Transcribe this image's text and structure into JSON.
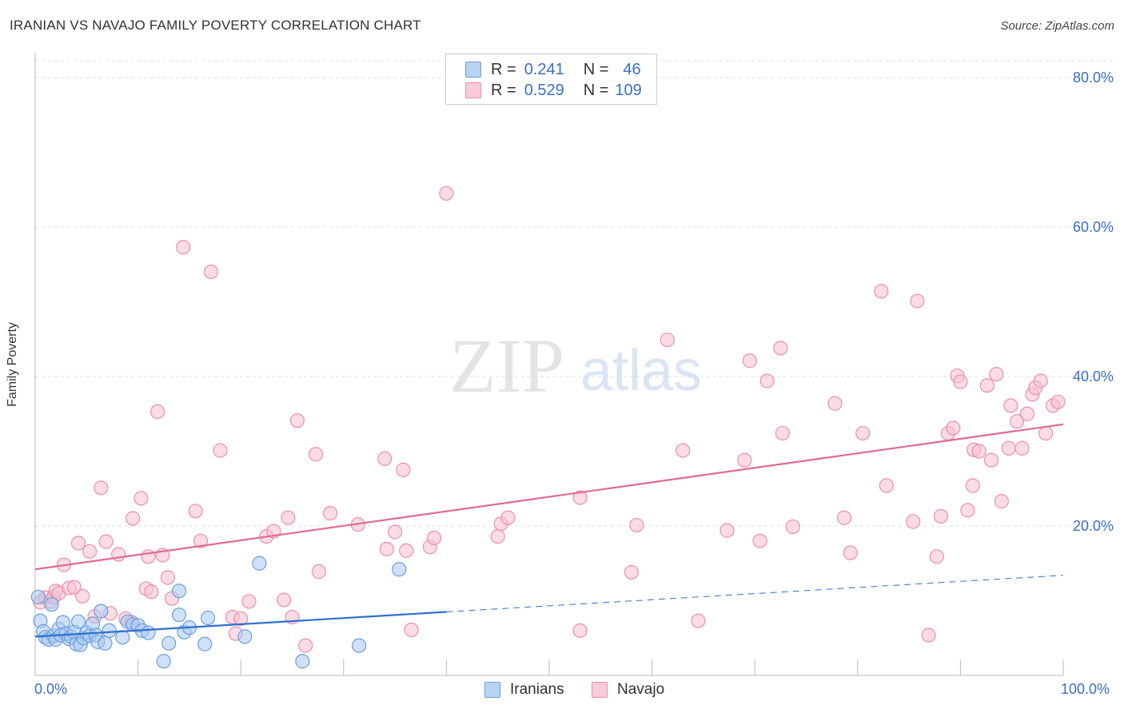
{
  "header": {
    "title": "IRANIAN VS NAVAJO FAMILY POVERTY CORRELATION CHART",
    "source": "Source: ZipAtlas.com"
  },
  "watermark": {
    "zip": "ZIP",
    "atlas": "atlas"
  },
  "legend_top": [
    {
      "r_label": "R =",
      "r_value": "0.241",
      "n_label": "N =",
      "n_value": "46"
    },
    {
      "r_label": "R =",
      "r_value": "0.529",
      "n_label": "N =",
      "n_value": "109"
    }
  ],
  "legend_bottom": [
    "Iranians",
    "Navajo"
  ],
  "x_tick_labels": {
    "left": "0.0%",
    "right": "100.0%"
  },
  "colors": {
    "iranians_fill": "#a9c8f0",
    "iranians_stroke": "#6a9fde",
    "iranians_line": "#2f6fcf",
    "navajo_fill": "#f7bfd0",
    "navajo_stroke": "#eb8fac",
    "navajo_line": "#e06a95",
    "tick_label": "#3a6fc4",
    "grid": "#dddddd"
  },
  "chart_data": {
    "type": "scatter",
    "xlabel": "",
    "ylabel": "Family Poverty",
    "xlim": [
      0,
      100
    ],
    "ylim": [
      0,
      82
    ],
    "y_ticks": [
      {
        "value": 20,
        "label": "20.0%"
      },
      {
        "value": 40,
        "label": "40.0%"
      },
      {
        "value": 60,
        "label": "60.0%"
      },
      {
        "value": 80,
        "label": "80.0%"
      }
    ],
    "grid": true,
    "legend_position": "top-center",
    "series": [
      {
        "name": "Iranians",
        "trend": {
          "x0": 0,
          "y0": 5.2,
          "x1": 40,
          "y1": 8.5,
          "extended_x1": 100,
          "extended_y1": 13.4
        },
        "points": [
          [
            0.3,
            10.5
          ],
          [
            0.5,
            7.3
          ],
          [
            0.8,
            5.9
          ],
          [
            1.0,
            5.1
          ],
          [
            1.3,
            4.8
          ],
          [
            1.6,
            9.5
          ],
          [
            1.8,
            5.3
          ],
          [
            2.0,
            4.8
          ],
          [
            2.3,
            6.2
          ],
          [
            2.5,
            5.4
          ],
          [
            2.7,
            7.1
          ],
          [
            3.0,
            5.6
          ],
          [
            3.3,
            4.9
          ],
          [
            3.5,
            5.2
          ],
          [
            3.8,
            5.8
          ],
          [
            4.0,
            4.2
          ],
          [
            4.2,
            7.2
          ],
          [
            4.4,
            4.1
          ],
          [
            4.7,
            5.0
          ],
          [
            5.0,
            5.7
          ],
          [
            5.3,
            5.3
          ],
          [
            5.6,
            6.9
          ],
          [
            5.9,
            5.4
          ],
          [
            6.1,
            4.5
          ],
          [
            6.4,
            8.6
          ],
          [
            6.8,
            4.3
          ],
          [
            7.2,
            6.0
          ],
          [
            8.5,
            5.1
          ],
          [
            9.0,
            7.2
          ],
          [
            9.5,
            6.8
          ],
          [
            10.0,
            6.7
          ],
          [
            10.4,
            6.0
          ],
          [
            11.0,
            5.7
          ],
          [
            12.5,
            1.9
          ],
          [
            13.0,
            4.3
          ],
          [
            14.0,
            11.3
          ],
          [
            14.0,
            8.1
          ],
          [
            14.5,
            5.8
          ],
          [
            15.0,
            6.4
          ],
          [
            16.5,
            4.2
          ],
          [
            16.8,
            7.7
          ],
          [
            21.8,
            15.0
          ],
          [
            20.4,
            5.2
          ],
          [
            26.0,
            1.9
          ],
          [
            31.5,
            4.0
          ],
          [
            35.4,
            14.2
          ]
        ]
      },
      {
        "name": "Navajo",
        "trend": {
          "x0": 0,
          "y0": 14.2,
          "x1": 100,
          "y1": 33.6
        },
        "points": [
          [
            0.5,
            9.8
          ],
          [
            1.0,
            10.4
          ],
          [
            1.5,
            9.9
          ],
          [
            1.8,
            10.5
          ],
          [
            2.0,
            11.3
          ],
          [
            2.3,
            11.0
          ],
          [
            2.8,
            14.8
          ],
          [
            3.3,
            11.7
          ],
          [
            3.8,
            11.8
          ],
          [
            4.2,
            17.7
          ],
          [
            4.6,
            10.6
          ],
          [
            5.3,
            16.6
          ],
          [
            5.8,
            7.9
          ],
          [
            6.4,
            25.1
          ],
          [
            6.9,
            17.9
          ],
          [
            7.3,
            8.3
          ],
          [
            8.1,
            16.2
          ],
          [
            8.8,
            7.6
          ],
          [
            9.4,
            7.1
          ],
          [
            9.5,
            21.0
          ],
          [
            10.3,
            23.7
          ],
          [
            10.8,
            11.6
          ],
          [
            11.0,
            15.9
          ],
          [
            11.3,
            11.2
          ],
          [
            11.9,
            35.3
          ],
          [
            12.4,
            16.1
          ],
          [
            12.9,
            13.1
          ],
          [
            13.3,
            10.3
          ],
          [
            14.4,
            57.3
          ],
          [
            15.6,
            22.0
          ],
          [
            16.1,
            18.0
          ],
          [
            17.1,
            54.0
          ],
          [
            18.0,
            30.1
          ],
          [
            19.2,
            7.8
          ],
          [
            19.5,
            5.6
          ],
          [
            20.0,
            7.6
          ],
          [
            20.8,
            9.9
          ],
          [
            22.5,
            18.6
          ],
          [
            23.2,
            19.3
          ],
          [
            24.2,
            10.1
          ],
          [
            24.6,
            21.1
          ],
          [
            25.0,
            7.8
          ],
          [
            25.5,
            34.1
          ],
          [
            26.3,
            4.0
          ],
          [
            27.3,
            29.6
          ],
          [
            27.6,
            13.9
          ],
          [
            28.7,
            21.7
          ],
          [
            31.4,
            20.2
          ],
          [
            34.0,
            29.0
          ],
          [
            34.2,
            16.9
          ],
          [
            35.0,
            19.2
          ],
          [
            35.8,
            27.5
          ],
          [
            36.1,
            16.7
          ],
          [
            36.6,
            6.1
          ],
          [
            38.4,
            17.2
          ],
          [
            38.8,
            18.4
          ],
          [
            40.0,
            64.5
          ],
          [
            45.0,
            18.6
          ],
          [
            45.3,
            20.3
          ],
          [
            46.0,
            21.1
          ],
          [
            53.0,
            23.8
          ],
          [
            53.0,
            6.0
          ],
          [
            58.0,
            13.8
          ],
          [
            58.5,
            20.1
          ],
          [
            61.5,
            44.9
          ],
          [
            63.0,
            30.1
          ],
          [
            64.5,
            7.3
          ],
          [
            67.3,
            19.4
          ],
          [
            69.0,
            28.8
          ],
          [
            69.5,
            42.1
          ],
          [
            70.5,
            18.0
          ],
          [
            71.2,
            39.4
          ],
          [
            72.5,
            43.8
          ],
          [
            72.7,
            32.4
          ],
          [
            73.7,
            19.9
          ],
          [
            77.8,
            36.4
          ],
          [
            78.7,
            21.1
          ],
          [
            79.3,
            16.4
          ],
          [
            80.5,
            32.4
          ],
          [
            82.3,
            51.4
          ],
          [
            82.8,
            25.4
          ],
          [
            85.4,
            20.6
          ],
          [
            85.8,
            50.1
          ],
          [
            86.9,
            5.4
          ],
          [
            87.7,
            15.9
          ],
          [
            88.1,
            21.3
          ],
          [
            88.8,
            32.4
          ],
          [
            89.3,
            33.1
          ],
          [
            89.7,
            40.1
          ],
          [
            90.0,
            39.3
          ],
          [
            90.7,
            22.1
          ],
          [
            91.2,
            25.4
          ],
          [
            91.3,
            30.2
          ],
          [
            91.8,
            30.0
          ],
          [
            92.6,
            38.8
          ],
          [
            93.0,
            28.8
          ],
          [
            93.5,
            40.3
          ],
          [
            94.0,
            23.3
          ],
          [
            94.7,
            30.4
          ],
          [
            94.9,
            36.1
          ],
          [
            95.5,
            34.0
          ],
          [
            96.0,
            30.4
          ],
          [
            96.5,
            35.0
          ],
          [
            97.0,
            37.6
          ],
          [
            97.3,
            38.5
          ],
          [
            97.8,
            39.4
          ],
          [
            98.3,
            32.4
          ],
          [
            99.0,
            36.1
          ],
          [
            99.5,
            36.6
          ]
        ]
      }
    ]
  }
}
